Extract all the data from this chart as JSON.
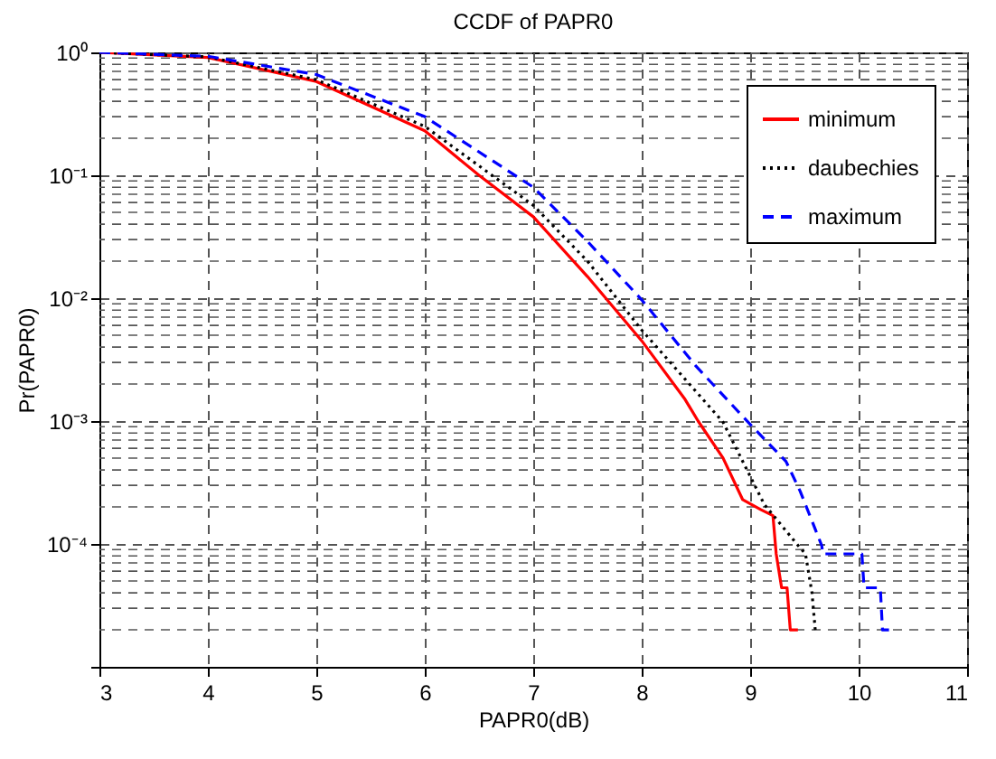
{
  "chart_data": {
    "type": "line",
    "title": "CCDF of PAPR0",
    "xlabel": "PAPR0(dB)",
    "ylabel": "Pr(PAPR0)",
    "log": "y",
    "grid": true,
    "legend": "top right",
    "xlim": [
      3,
      11
    ],
    "xticks": [
      3,
      4,
      5,
      6,
      7,
      8,
      9,
      10,
      11
    ],
    "ylim": [
      1e-05,
      1
    ],
    "yticks": [
      {
        "value": 1,
        "label": "10⁰"
      },
      {
        "value": 0.1,
        "label": "10⁻¹"
      },
      {
        "value": 0.01,
        "label": "10⁻²"
      },
      {
        "value": 0.001,
        "label": "10⁻³"
      },
      {
        "value": 0.0001,
        "label": "10⁻⁴"
      },
      {
        "value": 1e-05,
        "label": null
      }
    ],
    "series": [
      {
        "name": "minimum",
        "color": "#ff0000",
        "line_style": "solid",
        "x": [
          3,
          4,
          5,
          6,
          6.5,
          7,
          7.5,
          8,
          8.4,
          8.52,
          8.75,
          8.93,
          9.1,
          9.21,
          9.24,
          9.29,
          9.34,
          9.37,
          9.44
        ],
        "values": [
          1,
          0.91,
          0.58,
          0.23,
          0.1,
          0.046,
          0.015,
          0.0045,
          0.0015,
          0.001,
          0.0005,
          0.00023,
          0.00019,
          0.00017,
          8.3e-05,
          4.4e-05,
          4.4e-05,
          2e-05,
          2e-05
        ]
      },
      {
        "name": "daubechies",
        "color": "#000000",
        "line_style": "dotted",
        "x": [
          3,
          4,
          5,
          6,
          7,
          7.5,
          8,
          8.75,
          9.13,
          9.43,
          9.51,
          9.57,
          9.6
        ],
        "values": [
          1,
          0.92,
          0.6,
          0.25,
          0.057,
          0.02,
          0.0055,
          0.00098,
          0.00021,
          0.0001,
          8.3e-05,
          4e-05,
          2e-05
        ]
      },
      {
        "name": "maximum",
        "color": "#0000ff",
        "line_style": "dashed",
        "x": [
          3,
          4,
          5,
          6,
          7,
          7.5,
          8,
          8.5,
          9,
          9.33,
          9.46,
          9.66,
          9.67,
          10.03,
          10.05,
          10.2,
          10.22,
          10.28
        ],
        "values": [
          1,
          0.93,
          0.66,
          0.3,
          0.08,
          0.029,
          0.0097,
          0.0028,
          0.00094,
          0.00047,
          0.00027,
          9.7e-05,
          8.3e-05,
          8.3e-05,
          4.4e-05,
          4.4e-05,
          2e-05,
          2e-05
        ]
      }
    ]
  }
}
